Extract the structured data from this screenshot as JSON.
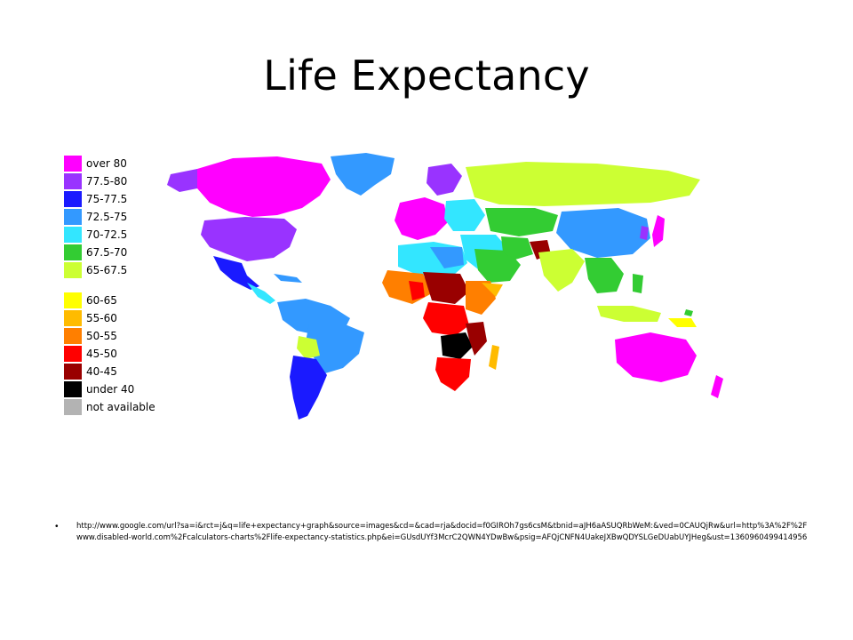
{
  "slide": {
    "title": "Life Expectancy",
    "bullet": "•",
    "source_url": "http://www.google.com/url?sa=i&rct=j&q=life+expectancy+graph&source=images&cd=&cad=rja&docid=f0GIROh7gs6csM&tbnid=aJH6aASUQRbWeM:&ved=0CAUQjRw&url=http%3A%2F%2Fwww.disabled-world.com%2Fcalculators-charts%2Flife-expectancy-statistics.php&ei=GUsdUYf3McrC2QWN4YDwBw&psig=AFQjCNFN4UakeJXBwQDYSLGeDUabUYJHeg&ust=1360960499414956"
  },
  "map": {
    "legend": [
      {
        "label": "over 80",
        "color": "#ff00ff"
      },
      {
        "label": "77.5-80",
        "color": "#9933ff"
      },
      {
        "label": "75-77.5",
        "color": "#1a1aff"
      },
      {
        "label": "72.5-75",
        "color": "#3399ff"
      },
      {
        "label": "70-72.5",
        "color": "#33e6ff"
      },
      {
        "label": "67.5-70",
        "color": "#33cc33"
      },
      {
        "label": "65-67.5",
        "color": "#ccff33"
      },
      {
        "label": "60-65",
        "color": "#ffff00"
      },
      {
        "label": "55-60",
        "color": "#ffbb00"
      },
      {
        "label": "50-55",
        "color": "#ff7f00"
      },
      {
        "label": "45-50",
        "color": "#ff0000"
      },
      {
        "label": "40-45",
        "color": "#990000"
      },
      {
        "label": "under 40",
        "color": "#000000"
      },
      {
        "label": "not available",
        "color": "#b3b3b3"
      }
    ]
  }
}
